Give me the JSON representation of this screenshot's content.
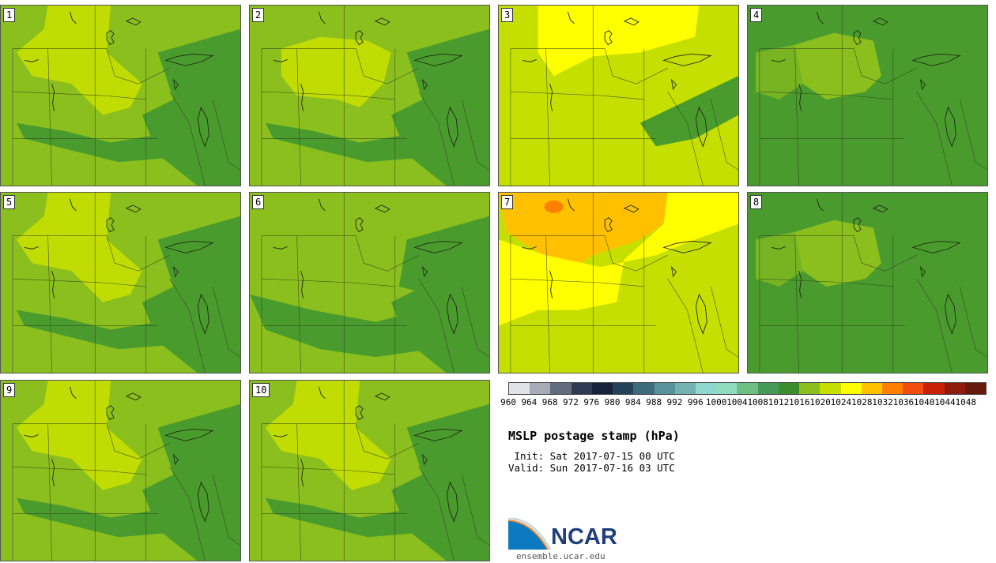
{
  "panels": [
    {
      "label": "1",
      "base": "#8bbf1e",
      "regions": [
        "light-north",
        "dark-east"
      ]
    },
    {
      "label": "2",
      "base": "#8bbf1e",
      "regions": [
        "light-center",
        "dark-east"
      ]
    },
    {
      "label": "3",
      "base": "#c5df00",
      "regions": [
        "yellow-north",
        "dark-east-small"
      ]
    },
    {
      "label": "4",
      "base": "#4a9b2e",
      "regions": [
        "green-center"
      ]
    },
    {
      "label": "5",
      "base": "#8bbf1e",
      "regions": [
        "light-north",
        "dark-east"
      ]
    },
    {
      "label": "6",
      "base": "#8bbf1e",
      "regions": [
        "dark-south",
        "dark-east"
      ]
    },
    {
      "label": "7",
      "base": "#c5df00",
      "regions": [
        "orange-north",
        "yellow-west"
      ]
    },
    {
      "label": "8",
      "base": "#4a9b2e",
      "regions": [
        "green-center"
      ]
    },
    {
      "label": "9",
      "base": "#8bbf1e",
      "regions": [
        "light-north",
        "dark-east"
      ]
    },
    {
      "label": "10",
      "base": "#8bbf1e",
      "regions": [
        "light-north",
        "dark-east"
      ]
    }
  ],
  "colorbar": {
    "levels": [
      "960",
      "964",
      "968",
      "972",
      "976",
      "980",
      "984",
      "988",
      "992",
      "996",
      "1000",
      "1004",
      "1008",
      "1012",
      "1016",
      "1020",
      "1024",
      "1028",
      "1032",
      "1036",
      "1040",
      "1044",
      "1048"
    ],
    "colors": [
      "#e1e3ea",
      "#a7aab7",
      "#636c7f",
      "#2d3a52",
      "#162239",
      "#234158",
      "#3e6a7d",
      "#58929c",
      "#74b1b1",
      "#8fd6cf",
      "#90dcc0",
      "#6fbf84",
      "#479a55",
      "#3c8d2e",
      "#8bbf1e",
      "#c5df00",
      "#ffff00",
      "#ffc000",
      "#ff7f00",
      "#f24d0c",
      "#c82108",
      "#8f1b0c",
      "#671a0c"
    ]
  },
  "title": "MSLP postage stamp (hPa)",
  "init": " Init: Sat 2017-07-15 00 UTC",
  "valid": "Valid: Sun 2017-07-16 03 UTC",
  "logo": {
    "text": "NCAR",
    "url": "ensemble.ucar.edu"
  }
}
